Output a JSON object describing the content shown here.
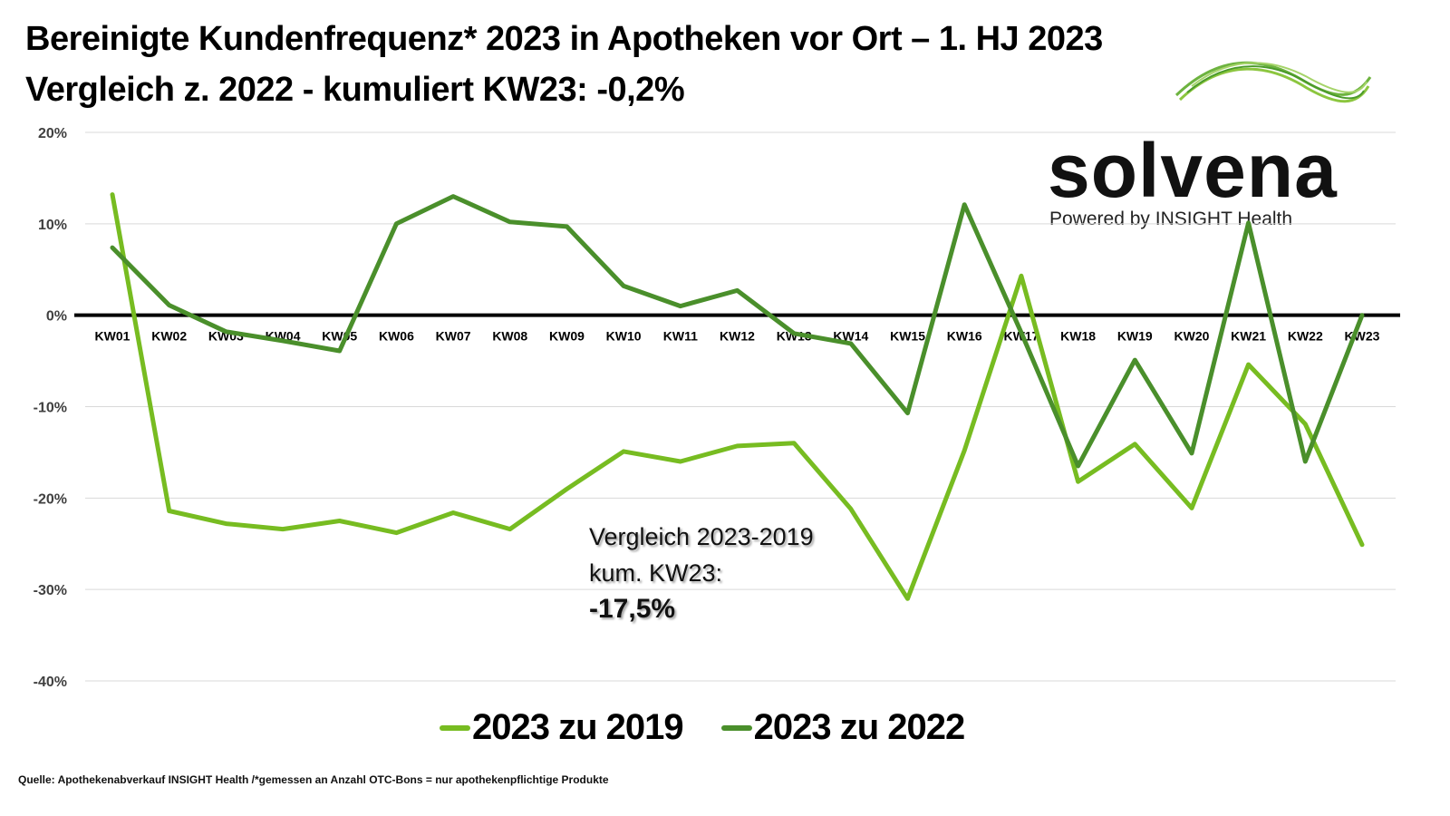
{
  "header": {
    "title_line1": "Bereinigte Kundenfrequenz* 2023 in Apotheken vor Ort – 1. HJ 2023",
    "title_line2": "Vergleich z. 2022 - kumuliert KW23: -0,2%"
  },
  "logo": {
    "word": "solvena",
    "tagline": "Powered by INSIGHT Health",
    "icon": "green-wave-logo-icon"
  },
  "annotation": {
    "line1": "Vergleich 2023-2019",
    "line2": "kum. KW23:",
    "value": "-17,5%"
  },
  "source": "Quelle: Apothekenabverkauf INSIGHT Health /*gemessen an Anzahl OTC-Bons = nur apothekenpflichtige Produkte",
  "colors": {
    "series_2019": "#77bc21",
    "series_2022": "#4a8f2b",
    "zero_line": "#000000",
    "grid": "#d9d9d9"
  },
  "chart_data": {
    "type": "line",
    "title": "Bereinigte Kundenfrequenz* 2023 in Apotheken vor Ort – 1. HJ 2023",
    "subtitle": "Vergleich z. 2022 - kumuliert KW23: -0,2%",
    "xlabel": "",
    "ylabel": "",
    "categories": [
      "KW01",
      "KW02",
      "KW03",
      "KW04",
      "KW05",
      "KW06",
      "KW07",
      "KW08",
      "KW09",
      "KW10",
      "KW11",
      "KW12",
      "KW13",
      "KW14",
      "KW15",
      "KW16",
      "KW17",
      "KW18",
      "KW19",
      "KW20",
      "KW21",
      "KW22",
      "KW23"
    ],
    "ylim": [
      -40,
      20
    ],
    "yticks": [
      20,
      10,
      0,
      -10,
      -20,
      -30,
      -40
    ],
    "ytick_labels": [
      "20%",
      "10%",
      "0%",
      "-10%",
      "-20%",
      "-30%",
      "-40%"
    ],
    "grid": true,
    "legend": "bottom",
    "series": [
      {
        "name": "2023 zu 2019",
        "values": [
          13.2,
          -21.4,
          -22.8,
          -23.4,
          -22.5,
          -23.8,
          -21.6,
          -23.4,
          -19.0,
          -14.9,
          -16.0,
          -14.3,
          -14.0,
          -21.2,
          -31.0,
          -14.8,
          4.3,
          -18.2,
          -14.1,
          -21.1,
          -5.4,
          -11.9,
          -25.1
        ]
      },
      {
        "name": "2023 zu 2022",
        "values": [
          7.4,
          1.1,
          -1.8,
          -2.8,
          -3.9,
          10.0,
          13.0,
          10.2,
          9.7,
          3.2,
          1.0,
          2.7,
          -2.0,
          -3.1,
          -10.7,
          12.1,
          -1.9,
          -16.5,
          -4.9,
          -15.1,
          10.1,
          -16.0,
          0.0
        ]
      }
    ],
    "annotations": [
      "Vergleich 2023-2019 kum. KW23: -17,5%"
    ]
  }
}
